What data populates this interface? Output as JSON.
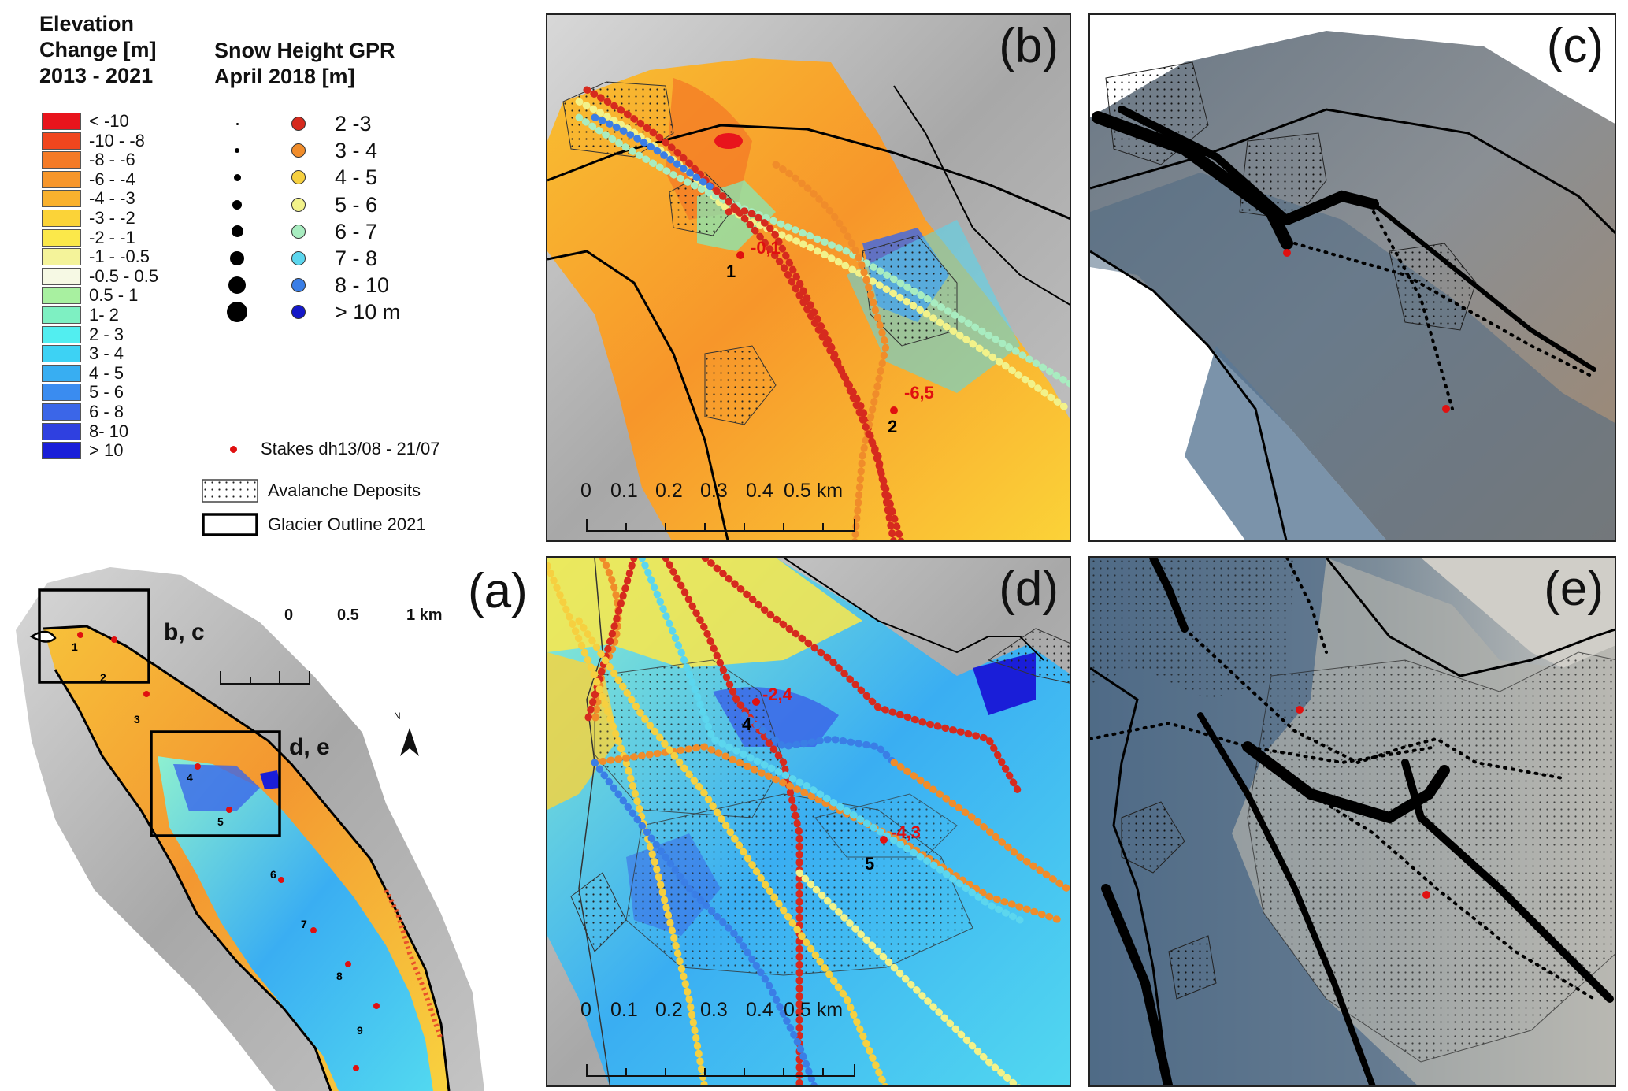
{
  "legend_elevation": {
    "title_lines": [
      "Elevation",
      "Change [m]",
      "2013 - 2021"
    ],
    "classes": [
      {
        "label": "< -10",
        "color": "#e8141c"
      },
      {
        "label": "-10 - -8",
        "color": "#f0461e"
      },
      {
        "label": "-8 - -6",
        "color": "#f47a26"
      },
      {
        "label": "-6 - -4",
        "color": "#f7962a"
      },
      {
        "label": "-4 - -3",
        "color": "#f9b12e"
      },
      {
        "label": "-3 - -2",
        "color": "#fbd338"
      },
      {
        "label": "-2 - -1",
        "color": "#fbe84a"
      },
      {
        "label": "-1 - -0.5",
        "color": "#f4f39a"
      },
      {
        "label": "-0.5 - 0.5",
        "color": "#f6f9e4"
      },
      {
        "label": "0.5 - 1",
        "color": "#a8f0a0"
      },
      {
        "label": "1- 2",
        "color": "#7ef0c2"
      },
      {
        "label": "2 - 3",
        "color": "#52eef0"
      },
      {
        "label": "3 - 4",
        "color": "#3dd2f4"
      },
      {
        "label": "4 - 5",
        "color": "#38aef2"
      },
      {
        "label": "5 - 6",
        "color": "#3a8cf0"
      },
      {
        "label": "6 - 8",
        "color": "#3b66e8"
      },
      {
        "label": "8- 10",
        "color": "#2f40e0"
      },
      {
        "label": "> 10",
        "color": "#1a1ed8"
      }
    ]
  },
  "legend_snow": {
    "title_lines": [
      "Snow Height GPR",
      "April 2018  [m]"
    ],
    "classes": [
      {
        "label": "2 -3",
        "color": "#d62a1e"
      },
      {
        "label": "3 - 4",
        "color": "#f08c2a"
      },
      {
        "label": "4 - 5",
        "color": "#f6d040"
      },
      {
        "label": "5 - 6",
        "color": "#f2f28a"
      },
      {
        "label": "6 - 7",
        "color": "#a8ecc0"
      },
      {
        "label": "7 - 8",
        "color": "#5cd6ee"
      },
      {
        "label": "8 - 10",
        "color": "#3a7ee6"
      },
      {
        "label": "> 10 m",
        "color": "#1418c8"
      }
    ],
    "stakes_label": "Stakes dh13/08 - 21/07",
    "avalanche_label": "Avalanche Deposits",
    "outline_label": "Glacier Outline 2021"
  },
  "panel_a": {
    "label": "(a)",
    "box_bc_label": "b, c",
    "box_de_label": "d, e",
    "scale_ticks": [
      "0",
      "0.5",
      "1 km"
    ],
    "north_label": "N",
    "stakes": [
      "1",
      "2",
      "3",
      "4",
      "5",
      "6",
      "7",
      "8",
      "9"
    ]
  },
  "panel_b": {
    "label": "(b)",
    "stake_values": [
      "-0,1",
      "-6,5"
    ],
    "stake_numbers": [
      "1",
      "2"
    ],
    "scale_ticks": [
      "0",
      "0.1",
      "0.2",
      "0.3",
      "0.4",
      "0.5 km"
    ]
  },
  "panel_c": {
    "label": "(c)"
  },
  "panel_d": {
    "label": "(d)",
    "stake_values": [
      "-2,4",
      "-4,3"
    ],
    "stake_numbers": [
      "4",
      "5"
    ],
    "scale_ticks": [
      "0",
      "0.1",
      "0.2",
      "0.3",
      "0.4",
      "0.5 km"
    ]
  },
  "panel_e": {
    "label": "(e)"
  }
}
